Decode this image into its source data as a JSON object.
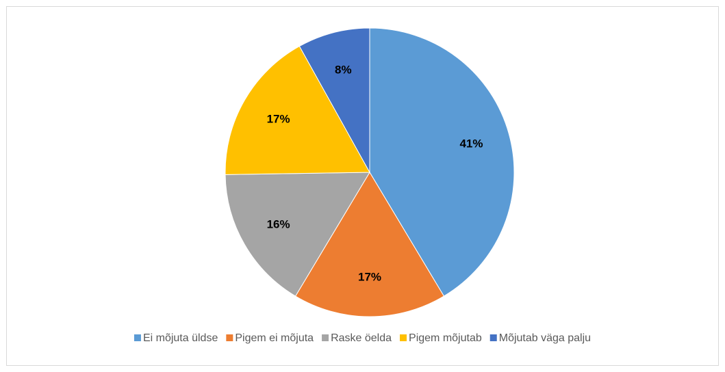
{
  "chart_data": {
    "type": "pie",
    "categories": [
      "Ei mõjuta üldse",
      "Pigem ei mõjuta",
      "Raske öelda",
      "Pigem mõjutab",
      "Mõjutab väga palju"
    ],
    "values": [
      41,
      17,
      16,
      17,
      8
    ],
    "value_labels": [
      "41%",
      "17%",
      "16%",
      "17%",
      "8%"
    ],
    "colors": [
      "#5b9bd5",
      "#ed7d31",
      "#a5a5a5",
      "#ffc000",
      "#4472c4"
    ],
    "legend": "bottom"
  }
}
